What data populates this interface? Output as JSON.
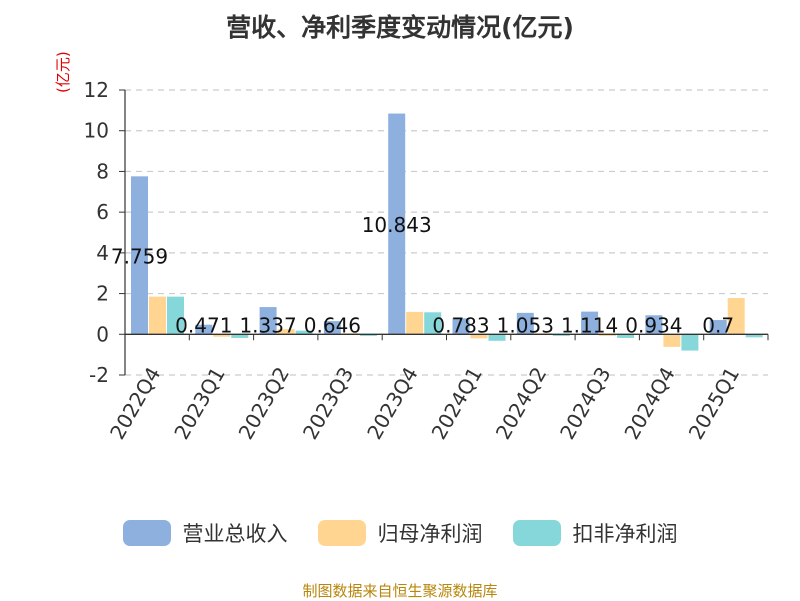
{
  "title": "营收、净利季度变动情况(亿元)",
  "source": "制图数据来自恒生聚源数据库",
  "colors": {
    "revenue": "#8eb0de",
    "net_profit": "#ffd591",
    "deducted_profit": "#86d7d9",
    "axis": "#333333",
    "grid": "#cccccc"
  },
  "chart_data": {
    "type": "bar",
    "title": "营收、净利季度变动情况(亿元)",
    "ylabel": "(亿元)",
    "ylim": [
      -2,
      12
    ],
    "yticks": [
      -2,
      0,
      2,
      4,
      6,
      8,
      10,
      12
    ],
    "grid": true,
    "legend_position": "bottom",
    "categories": [
      "2022Q4",
      "2023Q1",
      "2023Q2",
      "2023Q3",
      "2023Q4",
      "2024Q1",
      "2024Q2",
      "2024Q3",
      "2024Q4",
      "2025Q1"
    ],
    "series": [
      {
        "name": "营业总收入",
        "values": [
          7.759,
          0.471,
          1.337,
          0.646,
          10.843,
          0.783,
          1.053,
          1.114,
          0.934,
          0.7
        ]
      },
      {
        "name": "归母净利润",
        "values": [
          1.85,
          -0.12,
          0.25,
          0.05,
          1.1,
          -0.2,
          0.05,
          -0.08,
          -0.62,
          1.78
        ]
      },
      {
        "name": "扣非净利润",
        "values": [
          1.85,
          -0.18,
          0.18,
          -0.08,
          1.08,
          -0.32,
          -0.08,
          -0.18,
          -0.8,
          -0.15
        ]
      }
    ],
    "data_labels": [
      "7.759",
      "0.471",
      "1.337",
      "0.646",
      "10.843",
      "0.783",
      "1.053",
      "1.114",
      "0.934",
      "0.7"
    ]
  }
}
